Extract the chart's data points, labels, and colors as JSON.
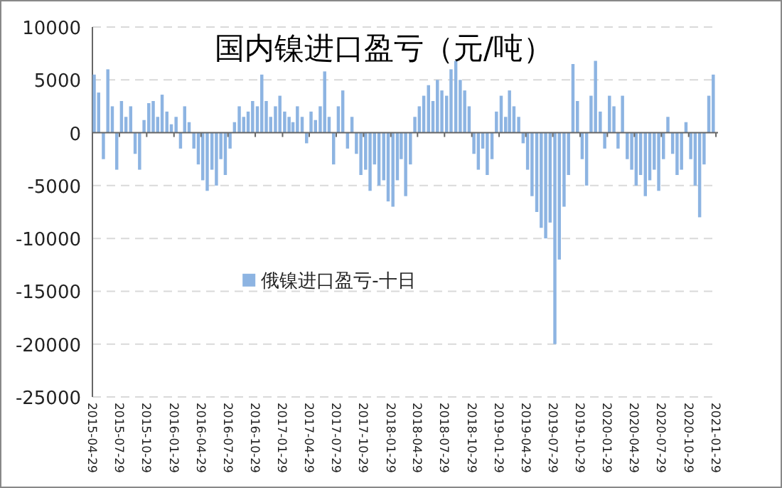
{
  "chart_data": {
    "type": "bar",
    "title": "国内镍进口盈亏（元/吨）",
    "x": [
      "2015-05-05",
      "2015-05-20",
      "2015-06-05",
      "2015-06-20",
      "2015-07-05",
      "2015-07-20",
      "2015-08-05",
      "2015-08-20",
      "2015-09-05",
      "2015-09-20",
      "2015-10-05",
      "2015-10-20",
      "2015-11-05",
      "2015-11-20",
      "2015-12-05",
      "2015-12-20",
      "2016-01-05",
      "2016-01-20",
      "2016-02-05",
      "2016-02-20",
      "2016-03-05",
      "2016-03-20",
      "2016-04-05",
      "2016-04-20",
      "2016-05-05",
      "2016-05-20",
      "2016-06-05",
      "2016-06-20",
      "2016-07-05",
      "2016-07-20",
      "2016-08-05",
      "2016-08-20",
      "2016-09-05",
      "2016-09-20",
      "2016-10-05",
      "2016-10-20",
      "2016-11-05",
      "2016-11-20",
      "2016-12-05",
      "2016-12-20",
      "2017-01-05",
      "2017-01-20",
      "2017-02-05",
      "2017-02-20",
      "2017-03-05",
      "2017-03-20",
      "2017-04-05",
      "2017-04-20",
      "2017-05-05",
      "2017-05-20",
      "2017-06-05",
      "2017-06-20",
      "2017-07-05",
      "2017-07-20",
      "2017-08-05",
      "2017-08-20",
      "2017-09-05",
      "2017-09-20",
      "2017-10-05",
      "2017-10-20",
      "2017-11-05",
      "2017-11-20",
      "2017-12-05",
      "2017-12-20",
      "2018-01-05",
      "2018-01-20",
      "2018-02-05",
      "2018-02-20",
      "2018-03-05",
      "2018-03-20",
      "2018-04-05",
      "2018-04-20",
      "2018-05-05",
      "2018-05-20",
      "2018-06-05",
      "2018-06-20",
      "2018-07-05",
      "2018-07-20",
      "2018-08-05",
      "2018-08-20",
      "2018-09-05",
      "2018-09-20",
      "2018-10-05",
      "2018-10-20",
      "2018-11-05",
      "2018-11-20",
      "2018-12-05",
      "2018-12-20",
      "2019-01-05",
      "2019-01-20",
      "2019-02-05",
      "2019-02-20",
      "2019-03-05",
      "2019-03-20",
      "2019-04-05",
      "2019-04-20",
      "2019-05-05",
      "2019-05-20",
      "2019-06-05",
      "2019-06-20",
      "2019-07-05",
      "2019-07-20",
      "2019-08-05",
      "2019-08-20",
      "2019-09-05",
      "2019-09-20",
      "2019-10-05",
      "2019-10-20",
      "2019-11-05",
      "2019-11-20",
      "2019-12-05",
      "2019-12-20",
      "2020-01-05",
      "2020-01-20",
      "2020-02-05",
      "2020-02-20",
      "2020-03-05",
      "2020-03-20",
      "2020-04-05",
      "2020-04-20",
      "2020-05-05",
      "2020-05-20",
      "2020-06-05",
      "2020-06-20",
      "2020-07-05",
      "2020-07-20",
      "2020-08-05",
      "2020-08-20",
      "2020-09-05",
      "2020-09-20",
      "2020-10-05",
      "2020-10-20",
      "2020-11-05",
      "2020-11-20",
      "2020-12-05",
      "2020-12-20",
      "2021-01-05",
      "2021-01-20"
    ],
    "series": [
      {
        "name": "俄镍进口盈亏-十日",
        "color": "#8db4e2",
        "values": [
          5500,
          3800,
          -2500,
          6000,
          2500,
          -3500,
          3000,
          1500,
          2500,
          -2000,
          -3500,
          1200,
          2800,
          3000,
          1500,
          3600,
          2000,
          800,
          1500,
          -1500,
          2500,
          1000,
          -1500,
          -3000,
          -4500,
          -5500,
          -3500,
          -5000,
          -2500,
          -4000,
          -1500,
          1000,
          2500,
          1500,
          2000,
          3000,
          2500,
          5500,
          3000,
          1500,
          2500,
          3500,
          2000,
          1500,
          1000,
          2500,
          1500,
          -1000,
          2000,
          1200,
          2500,
          5800,
          1500,
          -3000,
          2500,
          4000,
          -1500,
          1500,
          -2000,
          -4000,
          -3500,
          -5500,
          -3000,
          -5000,
          -4500,
          -6500,
          -7000,
          -4500,
          -2500,
          -6000,
          -3000,
          1500,
          2500,
          3500,
          4500,
          3000,
          5000,
          4000,
          3500,
          6000,
          6800,
          5000,
          4000,
          2500,
          -2000,
          -3500,
          -1500,
          -4000,
          -2500,
          2000,
          3500,
          1500,
          4000,
          2500,
          1500,
          -1000,
          -3500,
          -6000,
          -7500,
          -9000,
          -10000,
          -8500,
          -20000,
          -12000,
          -7000,
          -4000,
          6500,
          3000,
          -2500,
          -5000,
          3500,
          6800,
          2000,
          -1500,
          3500,
          2500,
          -1500,
          3500,
          -2500,
          -3500,
          -5000,
          -4000,
          -6000,
          -4500,
          -3500,
          -5500,
          -2500,
          1500,
          -2000,
          -4000,
          -3500,
          1000,
          -2500,
          -5000,
          -8000,
          -3000,
          3500,
          5500
        ]
      }
    ],
    "ylim": [
      -25000,
      10000
    ],
    "yticks": [
      -25000,
      -20000,
      -15000,
      -10000,
      -5000,
      0,
      5000,
      10000
    ],
    "xlim": [
      "2015-04-29",
      "2021-02-05"
    ],
    "xticks": [
      "2015-04-29",
      "2015-07-29",
      "2015-10-29",
      "2016-01-29",
      "2016-04-29",
      "2016-07-29",
      "2016-10-29",
      "2017-01-29",
      "2017-04-29",
      "2017-07-29",
      "2017-10-29",
      "2018-01-29",
      "2018-04-29",
      "2018-07-29",
      "2018-10-29",
      "2019-01-29",
      "2019-04-29",
      "2019-07-29",
      "2019-10-29",
      "2020-01-29",
      "2020-04-29",
      "2020-07-29",
      "2020-10-29",
      "2021-01-29"
    ],
    "grid": "y",
    "legend": "left"
  }
}
